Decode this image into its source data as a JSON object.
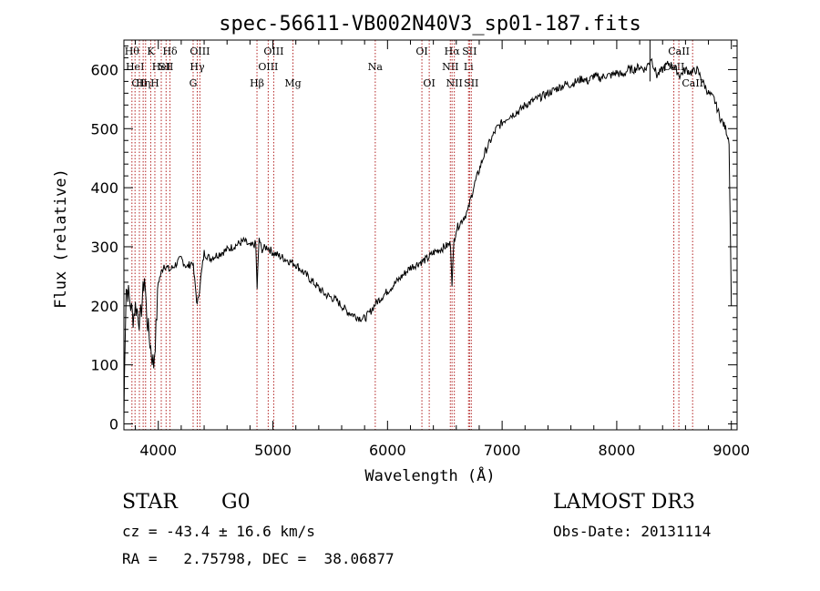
{
  "chart_data": {
    "type": "line",
    "title": "spec-56611-VB002N40V3_sp01-187.fits",
    "xlabel": "Wavelength (Å)",
    "ylabel": "Flux (relative)",
    "xlim": [
      3700,
      9050
    ],
    "ylim": [
      -10,
      650
    ],
    "xticks": [
      4000,
      5000,
      6000,
      7000,
      8000,
      9000
    ],
    "yticks": [
      0,
      100,
      200,
      300,
      400,
      500,
      600
    ],
    "series": [
      {
        "name": "flux",
        "x": [
          3700,
          3710,
          3720,
          3740,
          3760,
          3780,
          3800,
          3820,
          3840,
          3860,
          3880,
          3900,
          3920,
          3940,
          3960,
          3980,
          4000,
          4050,
          4100,
          4150,
          4200,
          4250,
          4300,
          4340,
          4400,
          4450,
          4500,
          4550,
          4600,
          4650,
          4700,
          4750,
          4800,
          4850,
          4862,
          4880,
          4900,
          4950,
          5000,
          5050,
          5100,
          5150,
          5200,
          5250,
          5300,
          5350,
          5400,
          5450,
          5500,
          5550,
          5600,
          5650,
          5700,
          5750,
          5800,
          5850,
          5900,
          5950,
          6000,
          6050,
          6100,
          6150,
          6200,
          6250,
          6300,
          6350,
          6400,
          6450,
          6500,
          6550,
          6563,
          6580,
          6600,
          6650,
          6700,
          6750,
          6800,
          6850,
          6900,
          6950,
          7000,
          7050,
          7100,
          7150,
          7200,
          7250,
          7300,
          7350,
          7400,
          7450,
          7500,
          7550,
          7600,
          7650,
          7700,
          7750,
          7800,
          7850,
          7900,
          7950,
          8000,
          8050,
          8100,
          8150,
          8200,
          8250,
          8300,
          8350,
          8400,
          8450,
          8500,
          8550,
          8600,
          8650,
          8700,
          8750,
          8800,
          8850,
          8900,
          8950,
          8980,
          9000
        ],
        "y": [
          10,
          150,
          230,
          220,
          200,
          180,
          200,
          190,
          170,
          210,
          250,
          180,
          150,
          120,
          100,
          160,
          240,
          270,
          260,
          270,
          280,
          265,
          275,
          200,
          290,
          280,
          285,
          290,
          295,
          300,
          305,
          310,
          300,
          305,
          230,
          315,
          295,
          300,
          290,
          285,
          280,
          275,
          270,
          260,
          250,
          240,
          230,
          220,
          215,
          210,
          200,
          190,
          185,
          180,
          178,
          190,
          205,
          215,
          225,
          235,
          245,
          255,
          265,
          270,
          275,
          280,
          290,
          295,
          300,
          305,
          240,
          310,
          330,
          345,
          360,
          400,
          430,
          460,
          480,
          500,
          510,
          520,
          525,
          530,
          540,
          545,
          550,
          555,
          560,
          565,
          570,
          575,
          575,
          580,
          585,
          580,
          590,
          585,
          590,
          590,
          595,
          590,
          600,
          600,
          605,
          600,
          620,
          590,
          600,
          610,
          605,
          590,
          600,
          595,
          600,
          580,
          560,
          550,
          520,
          500,
          480,
          200
        ]
      }
    ],
    "lines": [
      {
        "wave": 3770,
        "label": "Hθ",
        "row": 1
      },
      {
        "wave": 3797,
        "label": "HeI",
        "row": 2
      },
      {
        "wave": 3835,
        "label": "CII",
        "row": 3
      },
      {
        "wave": 3868,
        "label": "Hη",
        "row": 3
      },
      {
        "wave": 3889,
        "label": "",
        "row": 0
      },
      {
        "wave": 3934,
        "label": "K",
        "row": 1
      },
      {
        "wave": 3970,
        "label": "H",
        "row": 3
      },
      {
        "wave": 4026,
        "label": "HeI",
        "row": 2
      },
      {
        "wave": 4068,
        "label": "SII",
        "row": 2
      },
      {
        "wave": 4102,
        "label": "Hδ",
        "row": 1
      },
      {
        "wave": 4304,
        "label": "G",
        "row": 3
      },
      {
        "wave": 4340,
        "label": "Hγ",
        "row": 2
      },
      {
        "wave": 4363,
        "label": "OIII",
        "row": 1
      },
      {
        "wave": 4861,
        "label": "Hβ",
        "row": 3
      },
      {
        "wave": 4959,
        "label": "OIII",
        "row": 2
      },
      {
        "wave": 5007,
        "label": "OIII",
        "row": 1
      },
      {
        "wave": 5175,
        "label": "Mg",
        "row": 3
      },
      {
        "wave": 5893,
        "label": "Na",
        "row": 2
      },
      {
        "wave": 6300,
        "label": "OI",
        "row": 1
      },
      {
        "wave": 6364,
        "label": "OI",
        "row": 3
      },
      {
        "wave": 6548,
        "label": "NII",
        "row": 2
      },
      {
        "wave": 6563,
        "label": "Hα",
        "row": 1
      },
      {
        "wave": 6583,
        "label": "NII",
        "row": 3
      },
      {
        "wave": 6707,
        "label": "Li",
        "row": 2
      },
      {
        "wave": 6716,
        "label": "SII",
        "row": 1
      },
      {
        "wave": 6731,
        "label": "SII",
        "row": 3
      },
      {
        "wave": 8498,
        "label": "CaII",
        "row": 2
      },
      {
        "wave": 8542,
        "label": "CaII",
        "row": 1
      },
      {
        "wave": 8662,
        "label": "CaII",
        "row": 3
      }
    ]
  },
  "info": {
    "object_class": "STAR",
    "subclass": "G0",
    "redshift": "cz = -43.4 ± 16.6 km/s",
    "coords": "RA =   2.75798, DEC =  38.06877",
    "survey": "LAMOST DR3",
    "obs_date": "Obs-Date: 20131114"
  }
}
